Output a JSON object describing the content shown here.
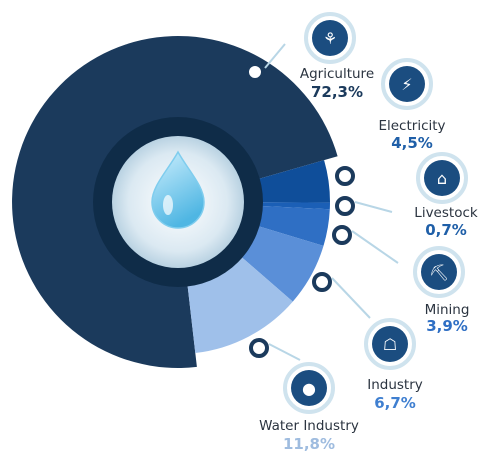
{
  "chart_data": {
    "type": "pie",
    "style": "donut",
    "categories": [
      "Agriculture",
      "Electricity",
      "Livestock",
      "Mining",
      "Industry",
      "Water Industry"
    ],
    "values": [
      72.3,
      4.5,
      0.7,
      3.9,
      6.7,
      11.8
    ],
    "labels": [
      "72,3%",
      "4,5%",
      "0,7%",
      "3,9%",
      "6,7%",
      "11,8%"
    ],
    "icons": [
      "agriculture-icon",
      "electricity-icon",
      "livestock-icon",
      "mining-icon",
      "industry-icon",
      "water-industry-icon"
    ],
    "colors": [
      "#1b3a5c",
      "#0f4e9a",
      "#1b5fb6",
      "#2f6fc4",
      "#5a8fd8",
      "#9fc0ea"
    ],
    "value_colors": [
      "#1b3a5c",
      "#1f5fa8",
      "#1f5fa8",
      "#2f6fc4",
      "#3f7fd0",
      "#9fbcdf"
    ]
  }
}
